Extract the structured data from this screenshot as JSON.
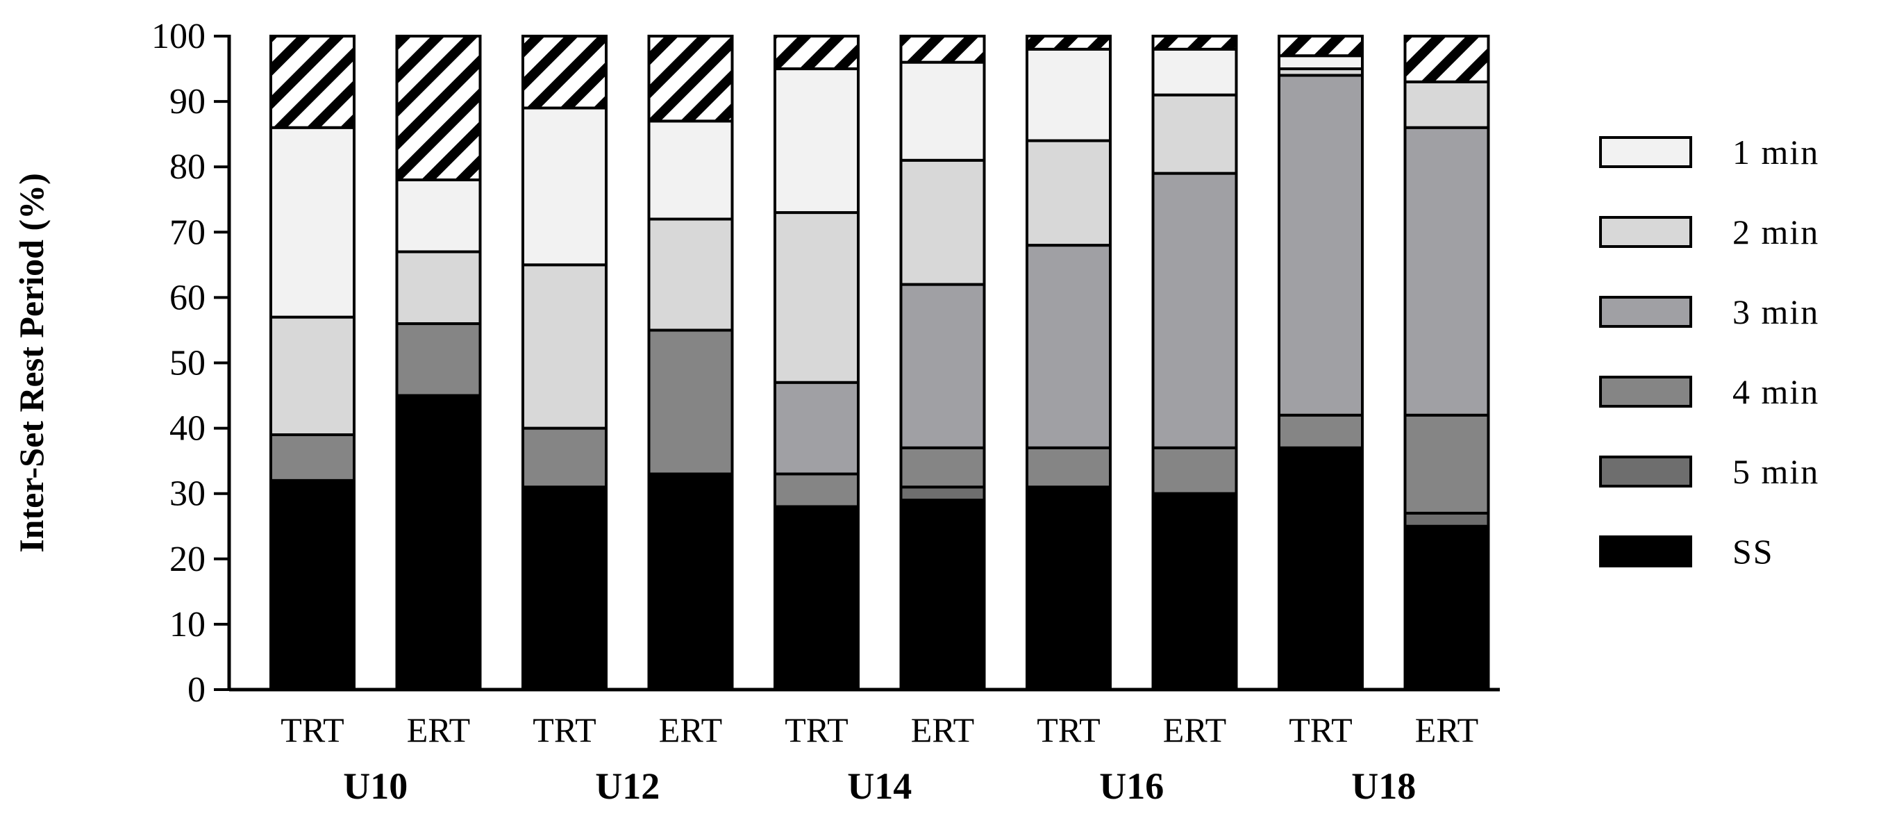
{
  "chart_data": {
    "type": "bar",
    "stacked": true,
    "ylabel": "Inter-Set Rest Period  (%)",
    "ylim": [
      0,
      100
    ],
    "yticks": [
      0,
      10,
      20,
      30,
      40,
      50,
      60,
      70,
      80,
      90,
      100
    ],
    "grid": false,
    "legend_position": "right",
    "categories": [
      "TRT",
      "ERT",
      "TRT",
      "ERT",
      "TRT",
      "ERT",
      "TRT",
      "ERT",
      "TRT",
      "ERT"
    ],
    "groups": [
      "U10",
      "U12",
      "U14",
      "U16",
      "U18"
    ],
    "series": [
      {
        "name": "SS",
        "color": "#000000",
        "values": [
          32,
          45,
          31,
          33,
          28,
          29,
          31,
          30,
          37,
          25
        ]
      },
      {
        "name": "5 min",
        "color": "#6e6e6e",
        "values": [
          0,
          0,
          0,
          0,
          0,
          2,
          0,
          0,
          0,
          2
        ]
      },
      {
        "name": "4 min",
        "color": "#858585",
        "values": [
          7,
          11,
          9,
          22,
          5,
          6,
          6,
          7,
          5,
          15
        ]
      },
      {
        "name": "3 min",
        "color": "#a0a0a4",
        "values": [
          0,
          0,
          0,
          0,
          14,
          25,
          31,
          42,
          52,
          44
        ]
      },
      {
        "name": "2 min",
        "color": "#d8d8d8",
        "values": [
          18,
          11,
          25,
          17,
          26,
          19,
          16,
          12,
          1,
          7
        ]
      },
      {
        "name": "1 min",
        "color": "#f2f2f2",
        "values": [
          29,
          11,
          24,
          15,
          22,
          15,
          14,
          7,
          2,
          0
        ]
      },
      {
        "name": "",
        "pattern": "hatch",
        "values": [
          14,
          22,
          11,
          13,
          5,
          4,
          2,
          2,
          3,
          7
        ]
      }
    ],
    "legend_order": [
      "1 min",
      "2 min",
      "3 min",
      "4 min",
      "5 min",
      "SS"
    ]
  }
}
